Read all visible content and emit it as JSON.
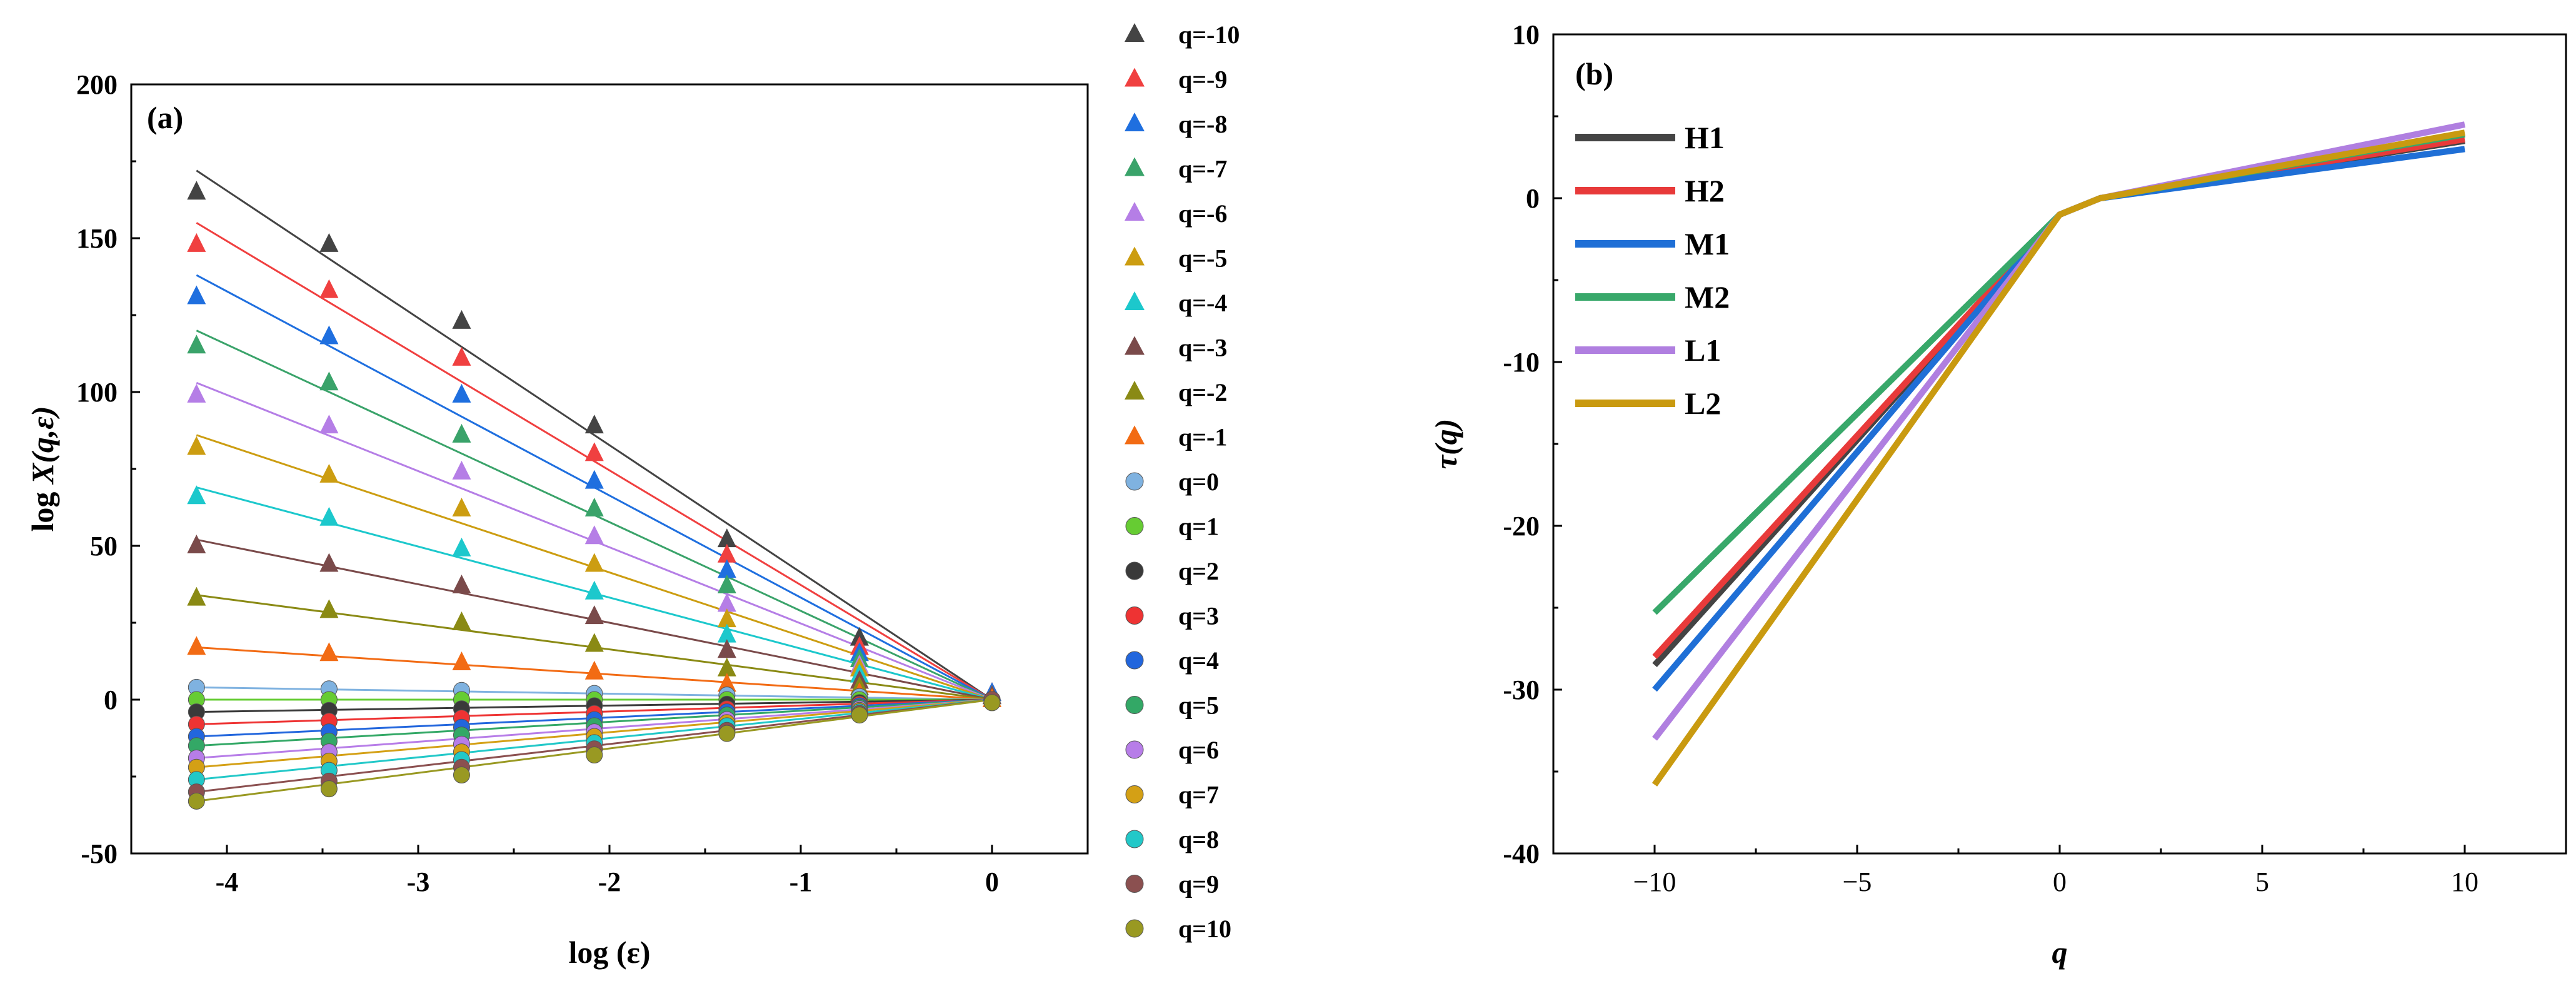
{
  "chart_data": [
    {
      "type": "scatter",
      "panel_label": "(a)",
      "xlabel": "log (ε)",
      "ylabel_prefix": "log ",
      "ylabel_italic": "X(q,ε)",
      "xlim": [
        -4.5,
        0.5
      ],
      "ylim": [
        -50,
        200
      ],
      "xticks": [
        -4,
        -3,
        -2,
        -1,
        0
      ],
      "yticks": [
        -50,
        0,
        50,
        100,
        150,
        200
      ],
      "x": [
        -4.159,
        -3.466,
        -2.773,
        -2.079,
        -1.386,
        -0.693,
        0
      ],
      "series": [
        {
          "name": "q=-10",
          "marker": "triangle",
          "color": "#444444",
          "values": [
            165,
            148,
            123,
            89,
            52,
            20,
            2
          ],
          "fit": [
            172,
            0
          ]
        },
        {
          "name": "q=-9",
          "marker": "triangle",
          "color": "#f04040",
          "values": [
            148,
            133,
            111,
            80,
            47,
            17,
            2
          ],
          "fit": [
            155,
            0
          ]
        },
        {
          "name": "q=-8",
          "marker": "triangle",
          "color": "#1f6fdf",
          "values": [
            131,
            118,
            99,
            71,
            42,
            15,
            2
          ],
          "fit": [
            138,
            0
          ]
        },
        {
          "name": "q=-7",
          "marker": "triangle",
          "color": "#3aa36a",
          "values": [
            115,
            103,
            86,
            62,
            37,
            13,
            1
          ],
          "fit": [
            120,
            0
          ]
        },
        {
          "name": "q=-6",
          "marker": "triangle",
          "color": "#b57ee6",
          "values": [
            99,
            89,
            74,
            53,
            31,
            11,
            1
          ],
          "fit": [
            103,
            0
          ]
        },
        {
          "name": "q=-5",
          "marker": "triangle",
          "color": "#cc9d11",
          "values": [
            82,
            73,
            62,
            44,
            26,
            10,
            1
          ],
          "fit": [
            86,
            0
          ]
        },
        {
          "name": "q=-4",
          "marker": "triangle",
          "color": "#1cc8cc",
          "values": [
            66,
            59,
            49,
            35,
            21,
            8,
            1
          ],
          "fit": [
            69,
            0
          ]
        },
        {
          "name": "q=-3",
          "marker": "triangle",
          "color": "#7a4a4a",
          "values": [
            50,
            44,
            37,
            27,
            16,
            6,
            1
          ],
          "fit": [
            52,
            0
          ]
        },
        {
          "name": "q=-2",
          "marker": "triangle",
          "color": "#8a8a14",
          "values": [
            33,
            29,
            25,
            18,
            10,
            4,
            0
          ],
          "fit": [
            34,
            0
          ]
        },
        {
          "name": "q=-1",
          "marker": "triangle",
          "color": "#f26b14",
          "values": [
            17,
            15,
            12,
            9,
            5,
            2,
            0
          ],
          "fit": [
            17,
            0
          ]
        },
        {
          "name": "q=0",
          "marker": "circle",
          "color": "#7fb2e0",
          "values": [
            4,
            3.5,
            3,
            2,
            1.5,
            1,
            0
          ],
          "fit": [
            4,
            0
          ]
        },
        {
          "name": "q=1",
          "marker": "circle",
          "color": "#66cc33",
          "values": [
            0,
            0,
            0,
            0,
            0,
            0,
            0
          ],
          "fit": [
            0,
            0
          ]
        },
        {
          "name": "q=2",
          "marker": "circle",
          "color": "#3a3a3a",
          "values": [
            -4,
            -3.5,
            -3,
            -2,
            -1.5,
            -1,
            0
          ],
          "fit": [
            -4,
            0
          ]
        },
        {
          "name": "q=3",
          "marker": "circle",
          "color": "#ee3333",
          "values": [
            -8,
            -7,
            -6,
            -4.5,
            -3,
            -1.5,
            0
          ],
          "fit": [
            -8,
            0
          ]
        },
        {
          "name": "q=4",
          "marker": "circle",
          "color": "#2266dd",
          "values": [
            -12,
            -10.5,
            -9,
            -6.5,
            -4,
            -2,
            0
          ],
          "fit": [
            -12,
            0
          ]
        },
        {
          "name": "q=5",
          "marker": "circle",
          "color": "#33a866",
          "values": [
            -15,
            -13.5,
            -11.5,
            -8.5,
            -5,
            -2.5,
            0
          ],
          "fit": [
            -15,
            0
          ]
        },
        {
          "name": "q=6",
          "marker": "circle",
          "color": "#b77de8",
          "values": [
            -19,
            -17,
            -14.5,
            -10.5,
            -6.5,
            -3,
            0
          ],
          "fit": [
            -19,
            0
          ]
        },
        {
          "name": "q=7",
          "marker": "circle",
          "color": "#d4a015",
          "values": [
            -22,
            -20,
            -17,
            -12,
            -7.5,
            -3.5,
            0
          ],
          "fit": [
            -22,
            0
          ]
        },
        {
          "name": "q=8",
          "marker": "circle",
          "color": "#22c8c8",
          "values": [
            -26,
            -23,
            -19.5,
            -14,
            -8.5,
            -4,
            0
          ],
          "fit": [
            -26,
            0
          ]
        },
        {
          "name": "q=9",
          "marker": "circle",
          "color": "#8b5050",
          "values": [
            -30,
            -26.5,
            -22,
            -16,
            -10,
            -4.5,
            0
          ],
          "fit": [
            -30,
            0
          ]
        },
        {
          "name": "q=10",
          "marker": "circle",
          "color": "#999922",
          "values": [
            -33,
            -29,
            -24.5,
            -18,
            -11,
            -5,
            -1
          ],
          "fit": [
            -33,
            0
          ]
        }
      ]
    },
    {
      "type": "line",
      "panel_label": "(b)",
      "xlabel": "q",
      "ylabel": "τ(q)",
      "xlim": [
        -12.5,
        12.5
      ],
      "ylim": [
        -40,
        10
      ],
      "xticks": [
        -10,
        -5,
        0,
        5,
        10
      ],
      "xtick_labels": [
        "−10",
        "−5",
        "0",
        "5",
        "10"
      ],
      "yticks": [
        -40,
        -30,
        -20,
        -10,
        0,
        10
      ],
      "x": [
        -10,
        0,
        1,
        10
      ],
      "series": [
        {
          "name": "H1",
          "color": "#444444",
          "values": [
            -28.5,
            -1,
            0,
            3.5
          ]
        },
        {
          "name": "H2",
          "color": "#e83a3a",
          "values": [
            -28,
            -1,
            0,
            3.6
          ]
        },
        {
          "name": "M1",
          "color": "#1f6fd6",
          "values": [
            -30,
            -1,
            0,
            3.0
          ]
        },
        {
          "name": "M2",
          "color": "#38a86a",
          "values": [
            -25.3,
            -1,
            0,
            3.9
          ]
        },
        {
          "name": "L1",
          "color": "#b07fe0",
          "values": [
            -33,
            -1,
            0,
            4.5
          ]
        },
        {
          "name": "L2",
          "color": "#c99a10",
          "values": [
            -35.8,
            -1,
            0,
            4.0
          ]
        }
      ]
    }
  ]
}
